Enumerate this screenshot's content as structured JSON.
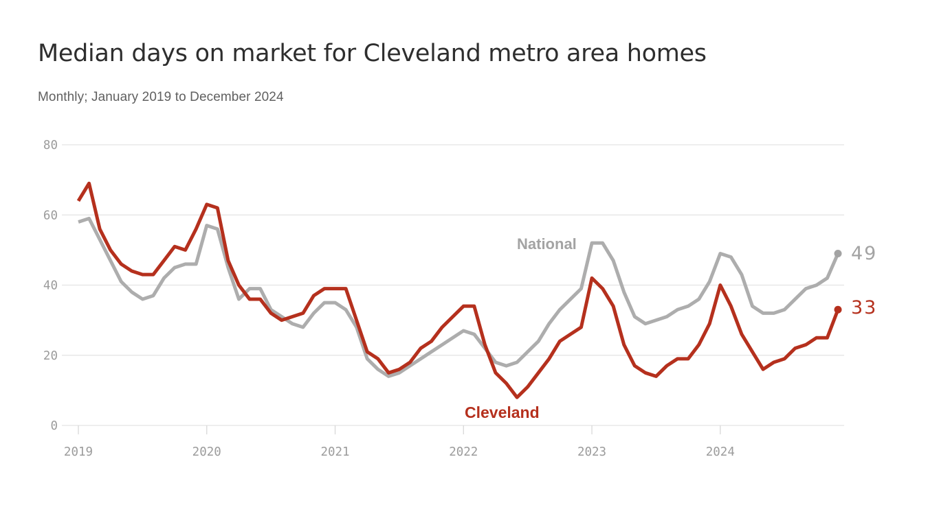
{
  "header": {
    "title": "Median days on market for Cleveland metro area homes",
    "subtitle": "Monthly; January 2019 to December 2024"
  },
  "chart_data": {
    "type": "line",
    "title": "Median days on market for Cleveland metro area homes",
    "subtitle": "Monthly; January 2019 to December 2024",
    "x_unit": "month",
    "x_start": "2019-01",
    "x_end": "2024-12",
    "x_tick_labels": [
      "2019",
      "2020",
      "2021",
      "2022",
      "2023",
      "2024"
    ],
    "y_ticks": [
      0,
      20,
      40,
      60,
      80
    ],
    "ylim": [
      0,
      80
    ],
    "grid": "horizontal-only",
    "legend_position": "inline-labels",
    "colors": {
      "national_line": "#adadad",
      "national_text": "#a3a3a3",
      "cleveland": "#b5301d",
      "gridline": "#e3e3e3",
      "axis_tick": "#d8d8d8",
      "axis_text": "#9b9b9b"
    },
    "series": [
      {
        "name": "National",
        "end_label": "49",
        "values": [
          58,
          59,
          53,
          47,
          41,
          38,
          36,
          37,
          42,
          45,
          46,
          46,
          57,
          56,
          45,
          36,
          39,
          39,
          33,
          31,
          29,
          28,
          32,
          35,
          35,
          33,
          28,
          19,
          16,
          14,
          15,
          17,
          19,
          21,
          23,
          25,
          27,
          26,
          22,
          18,
          17,
          18,
          21,
          24,
          29,
          33,
          36,
          39,
          52,
          52,
          47,
          38,
          31,
          29,
          30,
          31,
          33,
          34,
          36,
          41,
          49,
          48,
          43,
          34,
          32,
          32,
          33,
          36,
          39,
          40,
          42,
          49
        ]
      },
      {
        "name": "Cleveland",
        "end_label": "33",
        "values": [
          64,
          69,
          56,
          50,
          46,
          44,
          43,
          43,
          47,
          51,
          50,
          56,
          63,
          62,
          47,
          40,
          36,
          36,
          32,
          30,
          31,
          32,
          37,
          39,
          39,
          39,
          30,
          21,
          19,
          15,
          16,
          18,
          22,
          24,
          28,
          31,
          34,
          34,
          23,
          15,
          12,
          8,
          11,
          15,
          19,
          24,
          26,
          28,
          42,
          39,
          34,
          23,
          17,
          15,
          14,
          17,
          19,
          19,
          23,
          29,
          40,
          34,
          26,
          21,
          16,
          18,
          19,
          22,
          23,
          25,
          25,
          33
        ]
      }
    ]
  }
}
